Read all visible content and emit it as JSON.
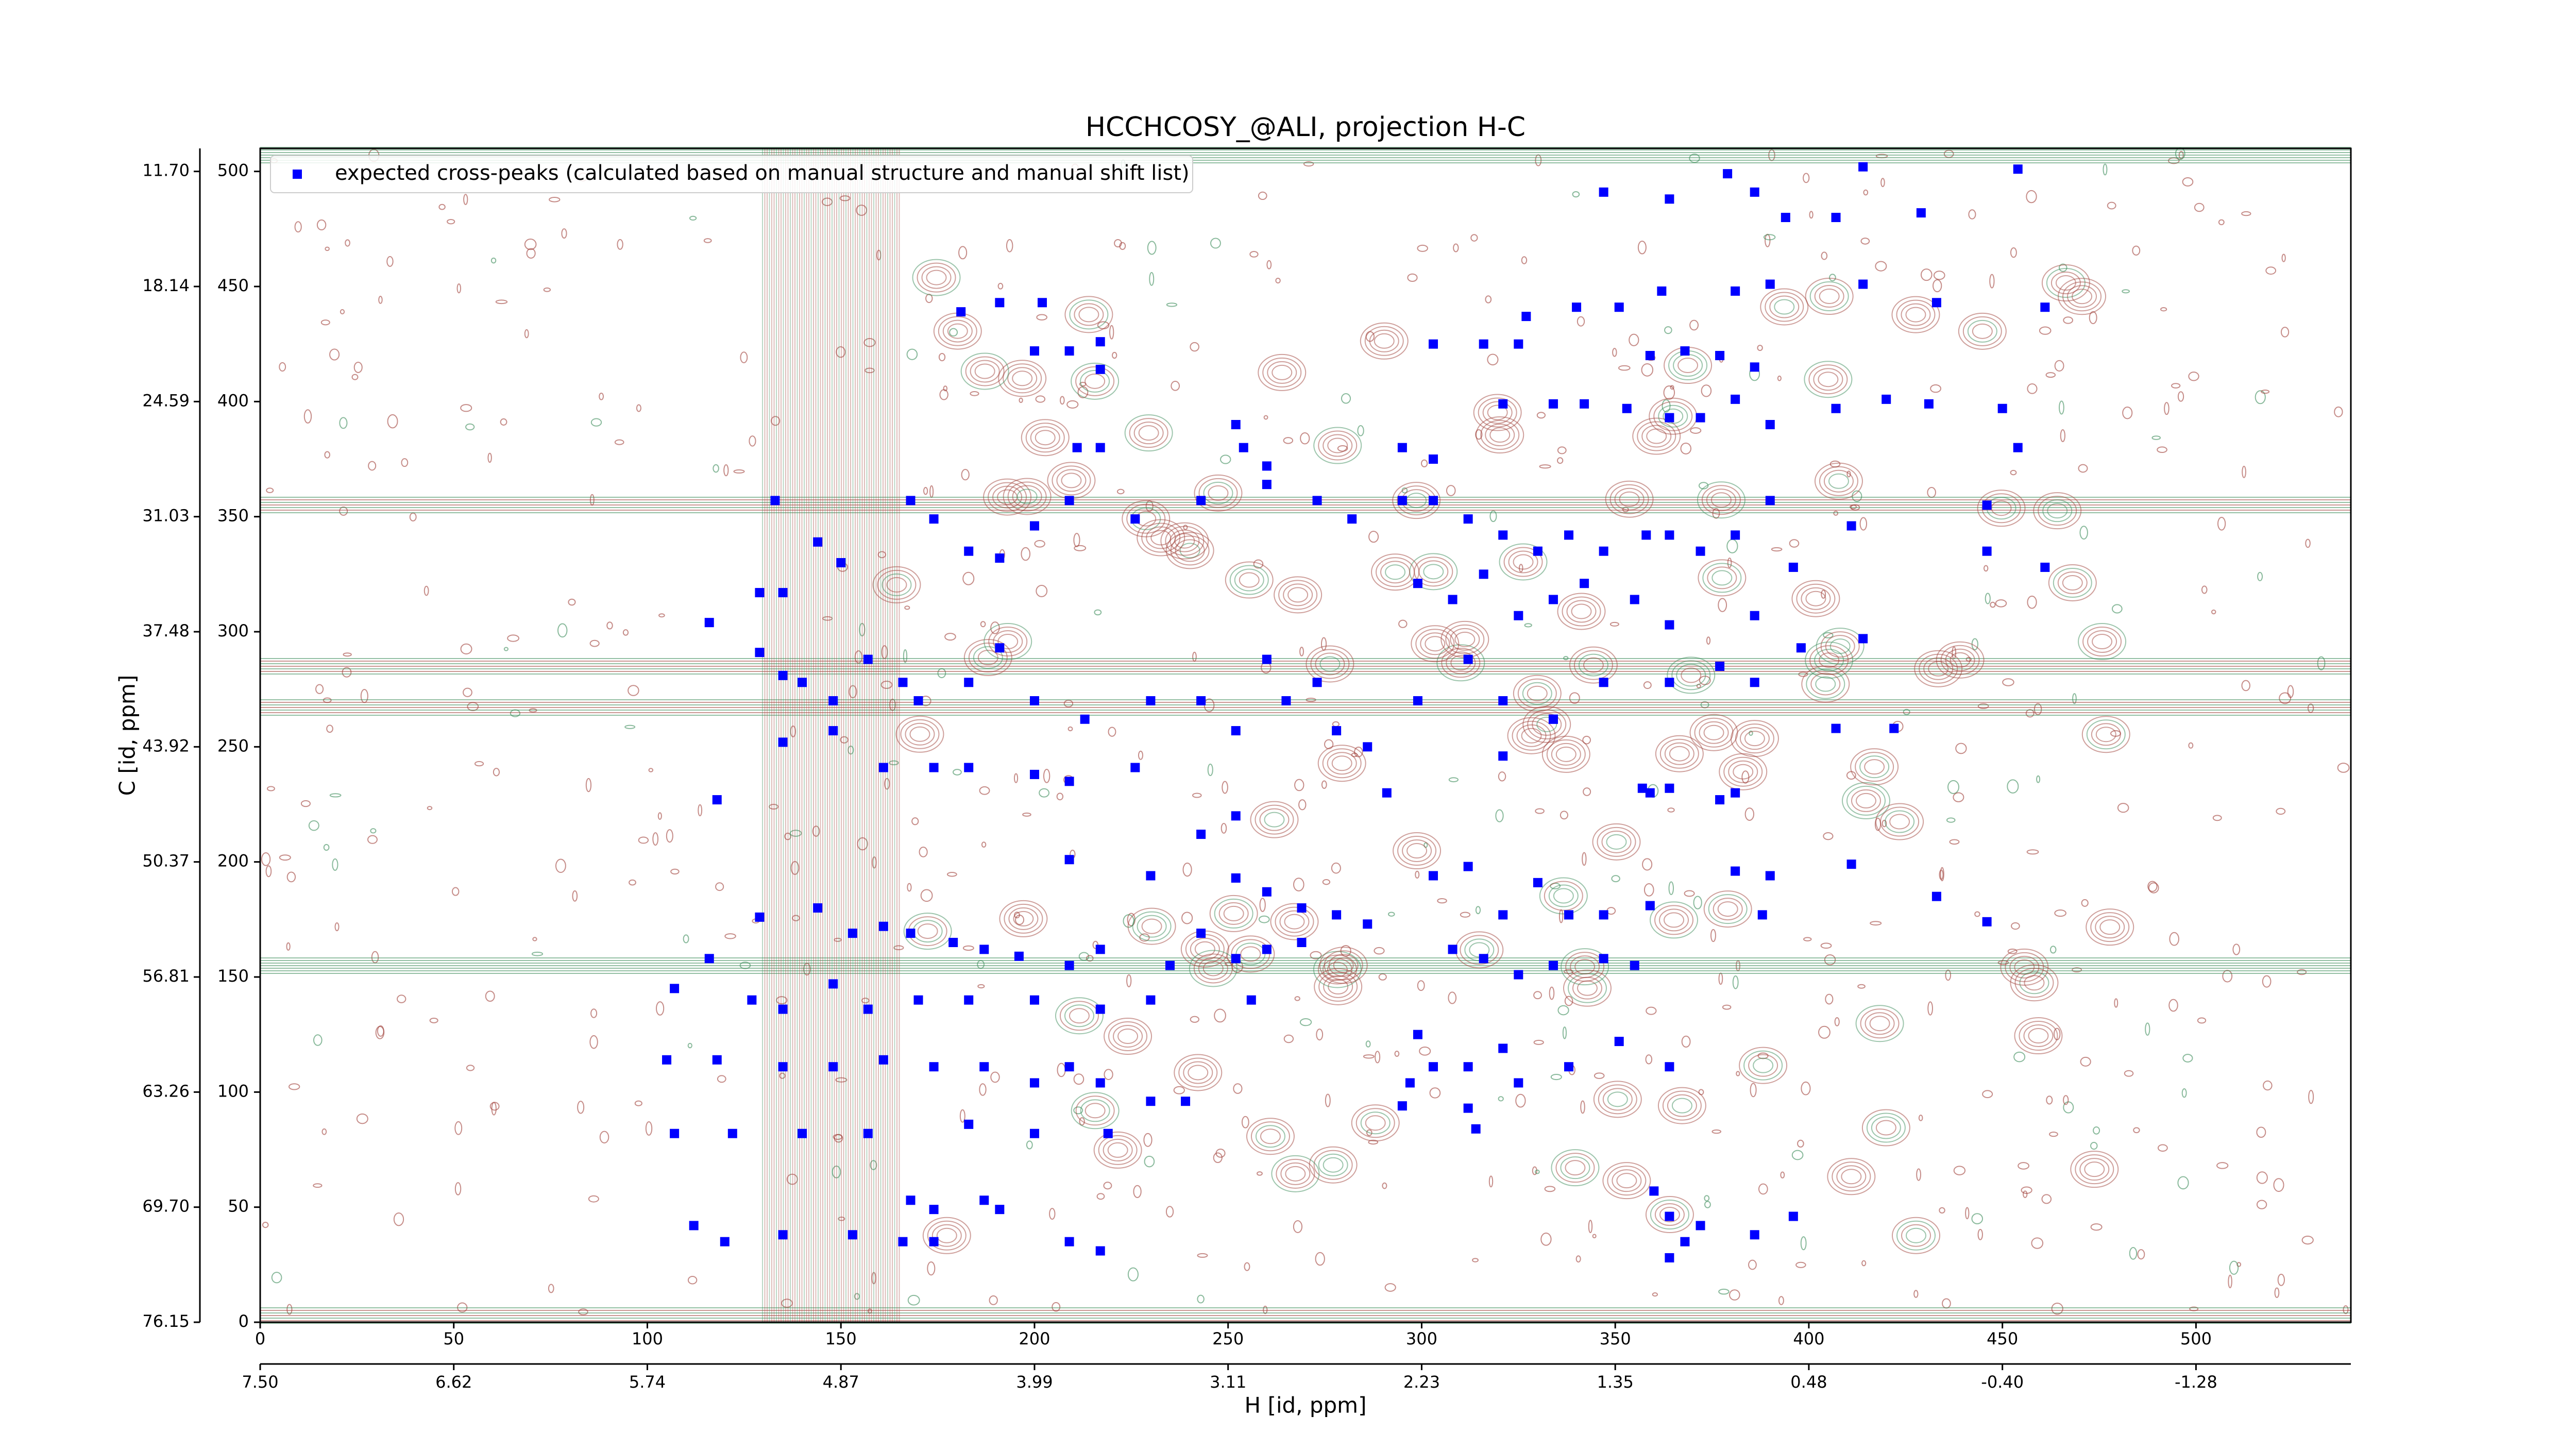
{
  "chart_data": {
    "type": "scatter",
    "title": "HCCHCOSY_@ALI, projection H-C",
    "xlabel": "H [id, ppm]",
    "ylabel": "C [id, ppm]",
    "legend": "upper left",
    "xlim": [
      0,
      540
    ],
    "ylim": [
      0,
      510
    ],
    "xticks": [
      0,
      50,
      100,
      150,
      200,
      250,
      300,
      350,
      400,
      450,
      500
    ],
    "yticks": [
      0,
      50,
      100,
      150,
      200,
      250,
      300,
      350,
      400,
      450,
      500
    ],
    "x2ticks": [
      {
        "value": 0,
        "label": "7.50"
      },
      {
        "value": 50,
        "label": "6.62"
      },
      {
        "value": 100,
        "label": "5.74"
      },
      {
        "value": 150,
        "label": "4.87"
      },
      {
        "value": 200,
        "label": "3.99"
      },
      {
        "value": 250,
        "label": "3.11"
      },
      {
        "value": 300,
        "label": "2.23"
      },
      {
        "value": 350,
        "label": "1.35"
      },
      {
        "value": 400,
        "label": "0.48"
      },
      {
        "value": 450,
        "label": "-0.40"
      },
      {
        "value": 500,
        "label": "-1.28"
      }
    ],
    "y2ticks": [
      {
        "value": 0,
        "label": "76.15"
      },
      {
        "value": 50,
        "label": "69.70"
      },
      {
        "value": 100,
        "label": "63.26"
      },
      {
        "value": 150,
        "label": "56.81"
      },
      {
        "value": 200,
        "label": "50.37"
      },
      {
        "value": 250,
        "label": "43.92"
      },
      {
        "value": 300,
        "label": "37.48"
      },
      {
        "value": 350,
        "label": "31.03"
      },
      {
        "value": 400,
        "label": "24.59"
      },
      {
        "value": 450,
        "label": "18.14"
      },
      {
        "value": 500,
        "label": "11.70"
      }
    ],
    "series": [
      {
        "name": "expected cross-peaks (calculated based on manual structure and manual shift list)",
        "color": "#0000ff",
        "x": [
          454,
          347,
          364,
          379,
          386,
          394,
          407,
          414,
          429,
          433,
          461,
          414,
          390,
          381,
          362,
          351,
          340,
          327,
          316,
          303,
          325,
          191,
          202,
          181,
          200,
          209,
          217,
          217,
          321,
          334,
          342,
          353,
          364,
          372,
          381,
          390,
          407,
          420,
          431,
          450,
          454,
          359,
          368,
          377,
          386,
          211,
          217,
          252,
          254,
          260,
          295,
          303,
          133,
          144,
          150,
          168,
          174,
          183,
          191,
          200,
          209,
          226,
          243,
          260,
          273,
          282,
          295,
          303,
          312,
          321,
          330,
          338,
          347,
          358,
          364,
          372,
          381,
          390,
          396,
          411,
          446,
          446,
          461,
          299,
          308,
          316,
          325,
          334,
          342,
          355,
          364,
          386,
          414,
          129,
          135,
          116,
          129,
          135,
          140,
          148,
          157,
          166,
          170,
          183,
          191,
          200,
          213,
          230,
          243,
          252,
          260,
          265,
          273,
          278,
          286,
          299,
          312,
          321,
          334,
          347,
          364,
          377,
          386,
          398,
          407,
          422,
          118,
          135,
          148,
          161,
          174,
          183,
          200,
          209,
          226,
          243,
          252,
          291,
          321,
          334,
          357,
          359,
          364,
          377,
          381,
          209,
          230,
          252,
          260,
          269,
          278,
          286,
          303,
          312,
          321,
          330,
          338,
          347,
          359,
          381,
          390,
          411,
          433,
          388,
          446,
          129,
          144,
          153,
          161,
          168,
          179,
          187,
          196,
          209,
          217,
          235,
          243,
          252,
          260,
          269,
          308,
          316,
          325,
          334,
          347,
          355,
          107,
          116,
          127,
          135,
          148,
          157,
          170,
          183,
          200,
          217,
          230,
          256,
          105,
          118,
          135,
          148,
          161,
          174,
          187,
          200,
          209,
          217,
          230,
          239,
          299,
          303,
          312,
          321,
          325,
          338,
          351,
          364,
          312,
          297,
          295,
          314,
          107,
          122,
          140,
          157,
          183,
          200,
          219,
          112,
          120,
          135,
          153,
          166,
          174,
          187,
          191,
          209,
          217,
          360,
          364,
          368,
          372,
          386,
          396,
          364,
          168,
          174
        ],
        "values": [
          501,
          491,
          488,
          499,
          491,
          480,
          480,
          502,
          482,
          443,
          441,
          451,
          451,
          448,
          448,
          441,
          441,
          437,
          425,
          425,
          425,
          443,
          443,
          439,
          422,
          422,
          426,
          414,
          399,
          399,
          399,
          397,
          393,
          393,
          401,
          390,
          397,
          401,
          399,
          397,
          380,
          420,
          422,
          420,
          415,
          380,
          380,
          390,
          380,
          372,
          380,
          375,
          357,
          339,
          330,
          357,
          349,
          335,
          332,
          346,
          357,
          349,
          357,
          364,
          357,
          349,
          357,
          357,
          349,
          342,
          335,
          342,
          335,
          342,
          342,
          335,
          342,
          357,
          328,
          346,
          355,
          335,
          328,
          321,
          314,
          325,
          307,
          314,
          321,
          314,
          303,
          307,
          297,
          317,
          317,
          304,
          291,
          281,
          278,
          270,
          288,
          278,
          270,
          278,
          293,
          270,
          262,
          270,
          270,
          257,
          288,
          270,
          278,
          257,
          250,
          270,
          288,
          270,
          262,
          278,
          278,
          285,
          278,
          293,
          258,
          258,
          227,
          252,
          257,
          241,
          241,
          241,
          238,
          235,
          241,
          212,
          220,
          230,
          246,
          262,
          232,
          230,
          232,
          227,
          230,
          201,
          194,
          193,
          187,
          180,
          177,
          173,
          194,
          198,
          177,
          191,
          177,
          177,
          181,
          196,
          194,
          199,
          185,
          177,
          174,
          176,
          180,
          169,
          172,
          169,
          165,
          162,
          159,
          155,
          162,
          155,
          169,
          158,
          162,
          165,
          162,
          158,
          151,
          155,
          158,
          155,
          145,
          158,
          140,
          136,
          147,
          136,
          140,
          140,
          140,
          136,
          140,
          140,
          114,
          114,
          111,
          111,
          114,
          111,
          111,
          104,
          111,
          104,
          96,
          96,
          125,
          111,
          111,
          119,
          104,
          111,
          122,
          111,
          93,
          104,
          94,
          84,
          82,
          82,
          82,
          82,
          86,
          82,
          82,
          42,
          35,
          38,
          38,
          35,
          35,
          53,
          49,
          35,
          31,
          57,
          46,
          35,
          42,
          38,
          46,
          28,
          53,
          49
        ]
      }
    ]
  }
}
